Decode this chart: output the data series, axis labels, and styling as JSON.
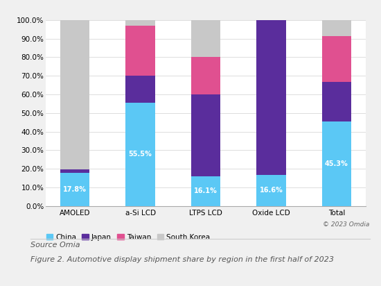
{
  "categories": [
    "AMOLED",
    "a-Si LCD",
    "LTPS LCD",
    "Oxide LCD",
    "Total"
  ],
  "regions": [
    "China",
    "Japan",
    "Taiwan",
    "South Korea"
  ],
  "colors": [
    "#5bc8f5",
    "#5a2d9c",
    "#e05090",
    "#c8c8c8"
  ],
  "values": {
    "China": [
      17.8,
      55.5,
      16.1,
      16.6,
      45.3
    ],
    "Japan": [
      2.0,
      14.5,
      43.9,
      83.4,
      21.4
    ],
    "Taiwan": [
      0.0,
      27.0,
      20.0,
      0.0,
      24.5
    ],
    "South Korea": [
      80.2,
      3.0,
      20.0,
      0.0,
      8.8
    ]
  },
  "china_labels": [
    "17.8%",
    "55.5%",
    "16.1%",
    "16.6%",
    "45.3%"
  ],
  "ylim": [
    0,
    100
  ],
  "yticks": [
    0,
    10,
    20,
    30,
    40,
    50,
    60,
    70,
    80,
    90,
    100
  ],
  "ytick_labels": [
    "0.0%",
    "10.0%",
    "20.0%",
    "30.0%",
    "40.0%",
    "50.0%",
    "60.0%",
    "70.0%",
    "80.0%",
    "90.0%",
    "100.0%"
  ],
  "bar_width": 0.45,
  "source_line1": "Source Omia",
  "source_line2": "Figure 2. Automotive display shipment share by region in the first half of 2023",
  "copyright_text": "© 2023 Omdia",
  "background_color": "#f0f0f0",
  "plot_bg_color": "#ffffff",
  "label_fontsize": 7.0,
  "tick_fontsize": 7.5,
  "legend_fontsize": 7.5,
  "source_fontsize": 8.0
}
